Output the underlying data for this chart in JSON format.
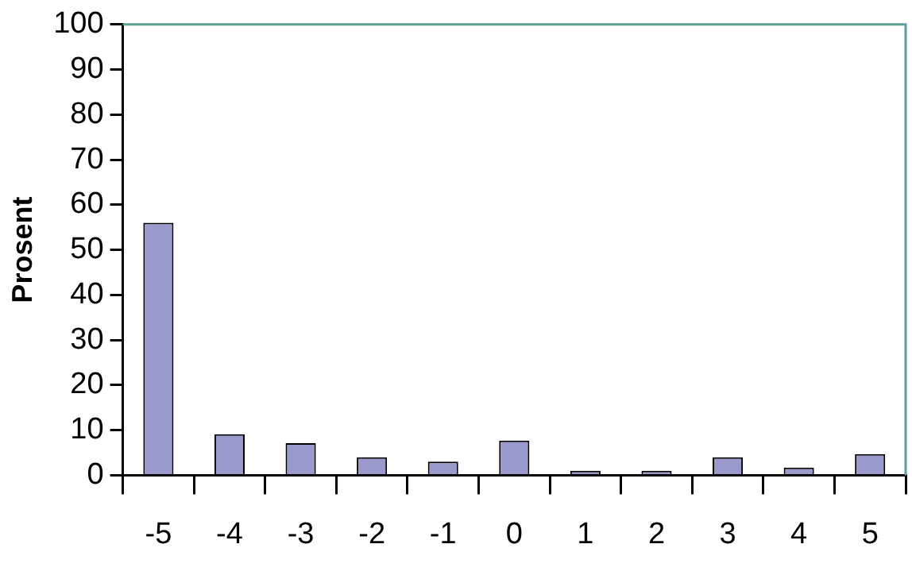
{
  "chart_data": {
    "type": "bar",
    "ylabel": "Prosent",
    "categories": [
      "-5",
      "-4",
      "-3",
      "-2",
      "-1",
      "0",
      "1",
      "2",
      "3",
      "4",
      "5"
    ],
    "values": [
      56,
      9.1,
      7.1,
      4,
      3,
      7.7,
      1,
      1,
      4,
      1.7,
      4.7
    ],
    "color": "#9999cc",
    "ylim": [
      0,
      100
    ],
    "yticks": [
      0,
      10,
      20,
      30,
      40,
      50,
      60,
      70,
      80,
      90,
      100
    ],
    "grid": false,
    "legend": false
  }
}
